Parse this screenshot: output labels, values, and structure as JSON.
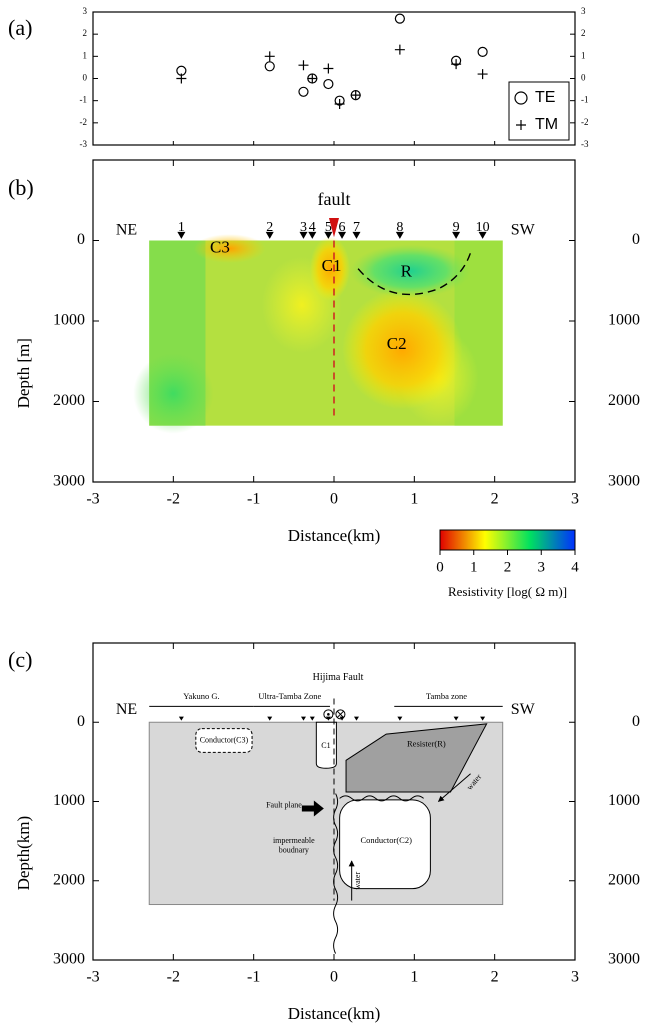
{
  "chart_data": [
    {
      "type": "scatter",
      "panel_label": "(a)",
      "xlim": [
        -3,
        3
      ],
      "xticks": [
        -3,
        -2,
        -1,
        0,
        1,
        2,
        3
      ],
      "ylim": [
        -3,
        3
      ],
      "yticks": [
        -3,
        -2,
        -1,
        0,
        1,
        2,
        3
      ],
      "legend": "lower right",
      "series": [
        {
          "name": "TE",
          "marker": "circle",
          "color": "#000000",
          "x": [
            -1.9,
            -0.8,
            -0.38,
            -0.27,
            -0.07,
            0.07,
            0.27,
            0.82,
            1.52,
            1.85
          ],
          "values": [
            0.35,
            0.55,
            -0.6,
            0.0,
            -0.25,
            -1.0,
            -0.75,
            2.7,
            0.8,
            1.2
          ]
        },
        {
          "name": "TM",
          "marker": "plus",
          "color": "#000000",
          "x": [
            -1.9,
            -0.8,
            -0.38,
            -0.27,
            -0.07,
            0.07,
            0.27,
            0.82,
            1.52,
            1.85
          ],
          "values": [
            0.0,
            1.0,
            0.6,
            0.0,
            0.45,
            -1.15,
            -0.75,
            1.3,
            0.65,
            0.2
          ]
        }
      ]
    },
    {
      "type": "section",
      "panel_label": "(b)",
      "xlabel": "Distance(km)",
      "ylabel": "Depth [m]",
      "xlim": [
        -3,
        3
      ],
      "xticks": [
        -3,
        -2,
        -1,
        0,
        1,
        2,
        3
      ],
      "ylim": [
        -1000,
        3000
      ],
      "yticks": [
        0,
        1000,
        2000,
        3000
      ],
      "y_inverted": true,
      "stations": {
        "labels": [
          "1",
          "2",
          "3",
          "4",
          "5",
          "6",
          "7",
          "8",
          "9",
          "10"
        ],
        "x": [
          -1.9,
          -0.8,
          -0.38,
          -0.27,
          -0.07,
          0.1,
          0.28,
          0.82,
          1.52,
          1.85
        ]
      },
      "ends": [
        "NE",
        "SW"
      ],
      "annotations": [
        "fault",
        "C3",
        "C1",
        "R",
        "C2"
      ],
      "colorbar": {
        "label": "Resistivity [log( Ω m)]",
        "lim": [
          0,
          4
        ],
        "ticks": [
          0,
          1,
          2,
          3,
          4
        ],
        "colors": [
          "#e00000",
          "#ffff00",
          "#00e060",
          "#0030ff"
        ]
      }
    },
    {
      "type": "diagram",
      "panel_label": "(c)",
      "xlabel": "Distance(km)",
      "ylabel": "Depth(km)",
      "xlim": [
        -3,
        3
      ],
      "xticks": [
        -3,
        -2,
        -1,
        0,
        1,
        2,
        3
      ],
      "ylim": [
        -1000,
        3000
      ],
      "yticks": [
        0,
        1000,
        2000,
        3000
      ],
      "y_inverted": true,
      "stations_x": [
        -1.9,
        -0.8,
        -0.38,
        -0.27,
        -0.07,
        0.1,
        0.28,
        0.82,
        1.52,
        1.85
      ],
      "ends": [
        "NE",
        "SW"
      ],
      "annotations": [
        "Hijima Fault",
        "Yakuno G.",
        "Ultra-Tamba Zone",
        "Tamba zone",
        "Conductor(C3)",
        "C1",
        "Resister(R)",
        "Fault plane",
        "impermeable",
        "boudnary",
        "Conductor(C2)",
        "water",
        "water"
      ]
    }
  ]
}
